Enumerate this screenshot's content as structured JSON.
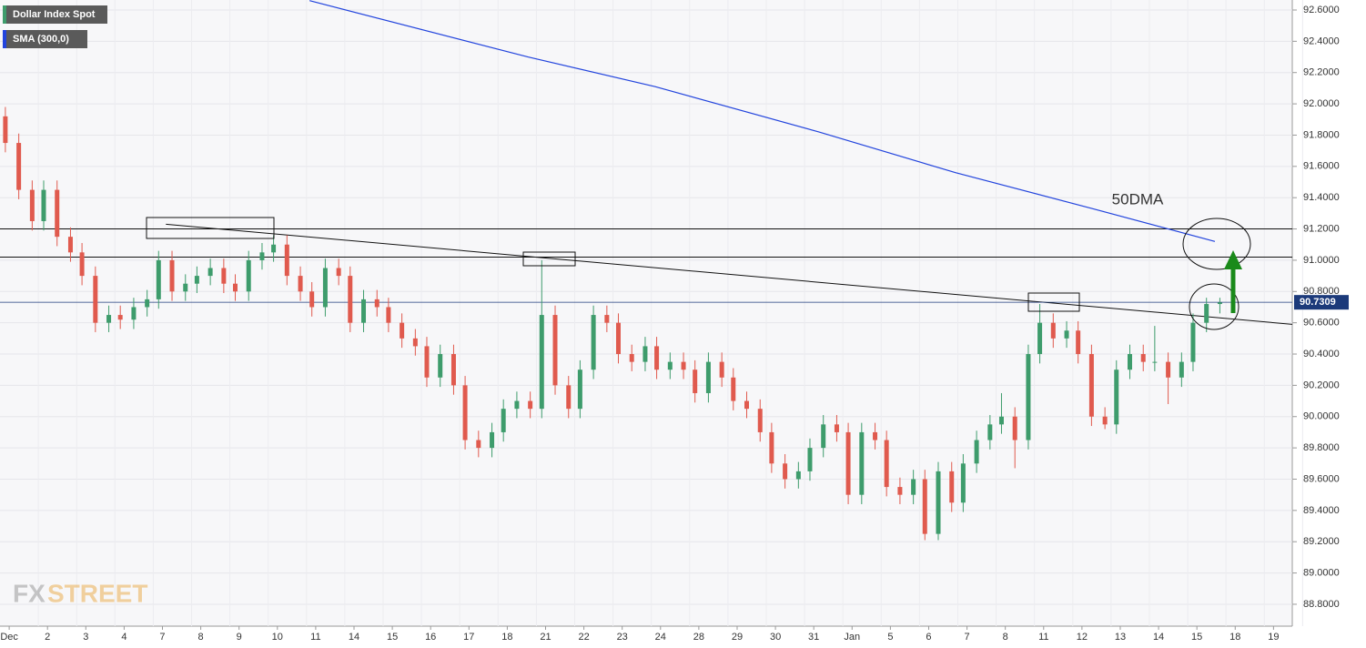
{
  "chart_data": {
    "type": "candlestick",
    "series_name": "Dollar Index Spot",
    "overlay_name": "SMA (300,0)",
    "annotation": "50DMA",
    "last_price": 90.7309,
    "up_color": "#3e9c6c",
    "down_color": "#e05a4e",
    "overlay_color": "#2244dd",
    "xlim": [
      -0.24,
      33.49
    ],
    "ylim": [
      88.66,
      92.664
    ],
    "grid": true,
    "xticks": [
      {
        "value": 0,
        "label": "Dec"
      },
      {
        "value": 1,
        "label": "2"
      },
      {
        "value": 2,
        "label": "3"
      },
      {
        "value": 3,
        "label": "4"
      },
      {
        "value": 4,
        "label": "7"
      },
      {
        "value": 5,
        "label": "8"
      },
      {
        "value": 6,
        "label": "9"
      },
      {
        "value": 7,
        "label": "10"
      },
      {
        "value": 8,
        "label": "11"
      },
      {
        "value": 9,
        "label": "14"
      },
      {
        "value": 10,
        "label": "15"
      },
      {
        "value": 11,
        "label": "16"
      },
      {
        "value": 12,
        "label": "17"
      },
      {
        "value": 13,
        "label": "18"
      },
      {
        "value": 14,
        "label": "21"
      },
      {
        "value": 15,
        "label": "22"
      },
      {
        "value": 16,
        "label": "23"
      },
      {
        "value": 17,
        "label": "24"
      },
      {
        "value": 18,
        "label": "28"
      },
      {
        "value": 19,
        "label": "29"
      },
      {
        "value": 20,
        "label": "30"
      },
      {
        "value": 21,
        "label": "31"
      },
      {
        "value": 22,
        "label": "Jan"
      },
      {
        "value": 23,
        "label": "5"
      },
      {
        "value": 24,
        "label": "6"
      },
      {
        "value": 25,
        "label": "7"
      },
      {
        "value": 26,
        "label": "8"
      },
      {
        "value": 27,
        "label": "11"
      },
      {
        "value": 28,
        "label": "12"
      },
      {
        "value": 29,
        "label": "13"
      },
      {
        "value": 30,
        "label": "14"
      },
      {
        "value": 31,
        "label": "15"
      },
      {
        "value": 32,
        "label": "18"
      },
      {
        "value": 33,
        "label": "19"
      }
    ],
    "yticks": [
      {
        "value": 92.6,
        "label": "92.6000"
      },
      {
        "value": 92.4,
        "label": "92.4000"
      },
      {
        "value": 92.2,
        "label": "92.2000"
      },
      {
        "value": 92.0,
        "label": "92.0000"
      },
      {
        "value": 91.8,
        "label": "91.8000"
      },
      {
        "value": 91.6,
        "label": "91.6000"
      },
      {
        "value": 91.4,
        "label": "91.4000"
      },
      {
        "value": 91.2,
        "label": "91.2000"
      },
      {
        "value": 91.0,
        "label": "91.0000"
      },
      {
        "value": 90.8,
        "label": "90.8000"
      },
      {
        "value": 90.6,
        "label": "90.6000"
      },
      {
        "value": 90.4,
        "label": "90.4000"
      },
      {
        "value": 90.2,
        "label": "90.2000"
      },
      {
        "value": 90.0,
        "label": "90.0000"
      },
      {
        "value": 89.8,
        "label": "89.8000"
      },
      {
        "value": 89.6,
        "label": "89.6000"
      },
      {
        "value": 89.4,
        "label": "89.4000"
      },
      {
        "value": 89.2,
        "label": "89.2000"
      },
      {
        "value": 89.0,
        "label": "89.0000"
      },
      {
        "value": 88.8,
        "label": "88.8000"
      }
    ],
    "x": [
      -0.1,
      0.25,
      0.6,
      0.9,
      1.25,
      1.6,
      1.9,
      2.25,
      2.6,
      2.9,
      3.25,
      3.6,
      3.9,
      4.25,
      4.6,
      4.9,
      5.25,
      5.6,
      5.9,
      6.25,
      6.6,
      6.9,
      7.25,
      7.6,
      7.9,
      8.25,
      8.6,
      8.9,
      9.25,
      9.6,
      9.9,
      10.25,
      10.6,
      10.9,
      11.25,
      11.6,
      11.9,
      12.25,
      12.6,
      12.9,
      13.25,
      13.6,
      13.9,
      14.25,
      14.6,
      14.9,
      15.25,
      15.6,
      15.9,
      16.25,
      16.6,
      16.9,
      17.25,
      17.6,
      17.9,
      18.25,
      18.6,
      18.9,
      19.25,
      19.6,
      19.9,
      20.25,
      20.6,
      20.9,
      21.25,
      21.6,
      21.9,
      22.25,
      22.6,
      22.9,
      23.25,
      23.6,
      23.9,
      24.25,
      24.6,
      24.9,
      25.25,
      25.6,
      25.9,
      26.25,
      26.6,
      26.9,
      27.25,
      27.6,
      27.9,
      28.25,
      28.6,
      28.9,
      29.25,
      29.6,
      29.9,
      30.25,
      30.6,
      30.9,
      31.25,
      31.6
    ],
    "open": [
      91.92,
      91.75,
      91.45,
      91.25,
      91.45,
      91.15,
      91.05,
      90.9,
      90.6,
      90.65,
      90.62,
      90.7,
      90.75,
      91.0,
      90.8,
      90.85,
      90.9,
      90.95,
      90.85,
      90.8,
      91.0,
      91.05,
      91.1,
      90.9,
      90.8,
      90.7,
      90.95,
      90.9,
      90.6,
      90.75,
      90.7,
      90.6,
      90.5,
      90.45,
      90.25,
      90.4,
      90.2,
      89.85,
      89.8,
      89.9,
      90.05,
      90.1,
      90.05,
      90.65,
      90.2,
      90.05,
      90.3,
      90.65,
      90.6,
      90.4,
      90.35,
      90.45,
      90.3,
      90.35,
      90.3,
      90.15,
      90.35,
      90.25,
      90.1,
      90.05,
      89.9,
      89.7,
      89.6,
      89.65,
      89.8,
      89.95,
      89.9,
      89.5,
      89.9,
      89.85,
      89.55,
      89.5,
      89.6,
      89.25,
      89.65,
      89.45,
      89.7,
      89.85,
      89.95,
      90.0,
      89.85,
      90.4,
      90.6,
      90.5,
      90.55,
      90.4,
      90.0,
      89.95,
      90.3,
      90.4,
      90.35,
      90.35,
      90.25,
      90.35,
      90.6,
      90.72
    ],
    "high": [
      91.98,
      91.81,
      91.51,
      91.51,
      91.51,
      91.21,
      91.11,
      90.96,
      90.71,
      90.71,
      90.76,
      90.81,
      91.06,
      91.06,
      90.91,
      90.96,
      91.01,
      91.01,
      90.91,
      91.06,
      91.11,
      91.16,
      91.16,
      90.96,
      90.86,
      91.01,
      91.01,
      90.96,
      90.81,
      90.81,
      90.76,
      90.66,
      90.56,
      90.51,
      90.46,
      90.46,
      90.26,
      89.91,
      89.96,
      90.11,
      90.16,
      90.16,
      91.0,
      90.71,
      90.26,
      90.36,
      90.71,
      90.71,
      90.66,
      90.46,
      90.51,
      90.51,
      90.41,
      90.41,
      90.36,
      90.41,
      90.41,
      90.31,
      90.16,
      90.11,
      89.96,
      89.76,
      89.71,
      89.86,
      90.01,
      90.01,
      89.96,
      89.96,
      89.96,
      89.91,
      89.61,
      89.66,
      89.66,
      89.71,
      89.71,
      89.76,
      89.91,
      90.01,
      90.15,
      90.06,
      90.46,
      90.72,
      90.66,
      90.61,
      90.61,
      90.46,
      90.06,
      90.36,
      90.46,
      90.46,
      90.58,
      90.41,
      90.41,
      90.66,
      90.76,
      90.76
    ],
    "low": [
      91.69,
      91.39,
      91.19,
      91.19,
      91.09,
      90.99,
      90.84,
      90.54,
      90.54,
      90.56,
      90.56,
      90.64,
      90.69,
      90.74,
      90.74,
      90.79,
      90.84,
      90.79,
      90.74,
      90.74,
      90.94,
      90.99,
      90.84,
      90.74,
      90.64,
      90.64,
      90.84,
      90.54,
      90.54,
      90.64,
      90.54,
      90.44,
      90.39,
      90.19,
      90.19,
      90.14,
      89.79,
      89.74,
      89.74,
      89.84,
      89.99,
      89.99,
      89.99,
      90.14,
      89.99,
      89.99,
      90.24,
      90.54,
      90.34,
      90.29,
      90.29,
      90.24,
      90.24,
      90.24,
      90.09,
      90.09,
      90.19,
      90.04,
      89.99,
      89.84,
      89.64,
      89.54,
      89.54,
      89.59,
      89.74,
      89.84,
      89.44,
      89.44,
      89.79,
      89.49,
      89.44,
      89.44,
      89.21,
      89.21,
      89.39,
      89.39,
      89.64,
      89.79,
      89.89,
      89.67,
      89.79,
      90.34,
      90.44,
      90.44,
      90.34,
      89.94,
      89.92,
      89.89,
      90.24,
      90.29,
      90.29,
      90.08,
      90.19,
      90.29,
      90.54,
      90.66
    ],
    "close": [
      91.75,
      91.45,
      91.25,
      91.45,
      91.15,
      91.05,
      90.9,
      90.6,
      90.65,
      90.62,
      90.7,
      90.75,
      91.0,
      90.8,
      90.85,
      90.9,
      90.95,
      90.85,
      90.8,
      91.0,
      91.05,
      91.1,
      90.9,
      90.8,
      90.7,
      90.95,
      90.9,
      90.6,
      90.75,
      90.7,
      90.6,
      90.5,
      90.45,
      90.25,
      90.4,
      90.2,
      89.85,
      89.8,
      89.9,
      90.05,
      90.1,
      90.05,
      90.65,
      90.2,
      90.05,
      90.3,
      90.65,
      90.6,
      90.4,
      90.35,
      90.45,
      90.3,
      90.35,
      90.3,
      90.15,
      90.35,
      90.25,
      90.1,
      90.05,
      89.9,
      89.7,
      89.6,
      89.65,
      89.8,
      89.95,
      89.9,
      89.5,
      89.9,
      89.85,
      89.55,
      89.5,
      89.6,
      89.25,
      89.65,
      89.45,
      89.7,
      89.85,
      89.95,
      90.0,
      89.85,
      90.4,
      90.6,
      90.5,
      90.55,
      90.4,
      90.0,
      89.95,
      90.3,
      90.4,
      90.35,
      90.35,
      90.25,
      90.35,
      90.6,
      90.72,
      90.73
    ],
    "overlay_x": [
      7.84,
      13.54,
      16.86,
      21.14,
      24.7,
      28.27,
      31.47
    ],
    "overlay_y": [
      92.66,
      92.3,
      92.11,
      91.82,
      91.56,
      91.33,
      91.12
    ],
    "levels": [
      91.2,
      91.02
    ],
    "trendline_x": [
      4.09,
      33.49
    ],
    "trendline_y": [
      91.23,
      90.59
    ]
  }
}
